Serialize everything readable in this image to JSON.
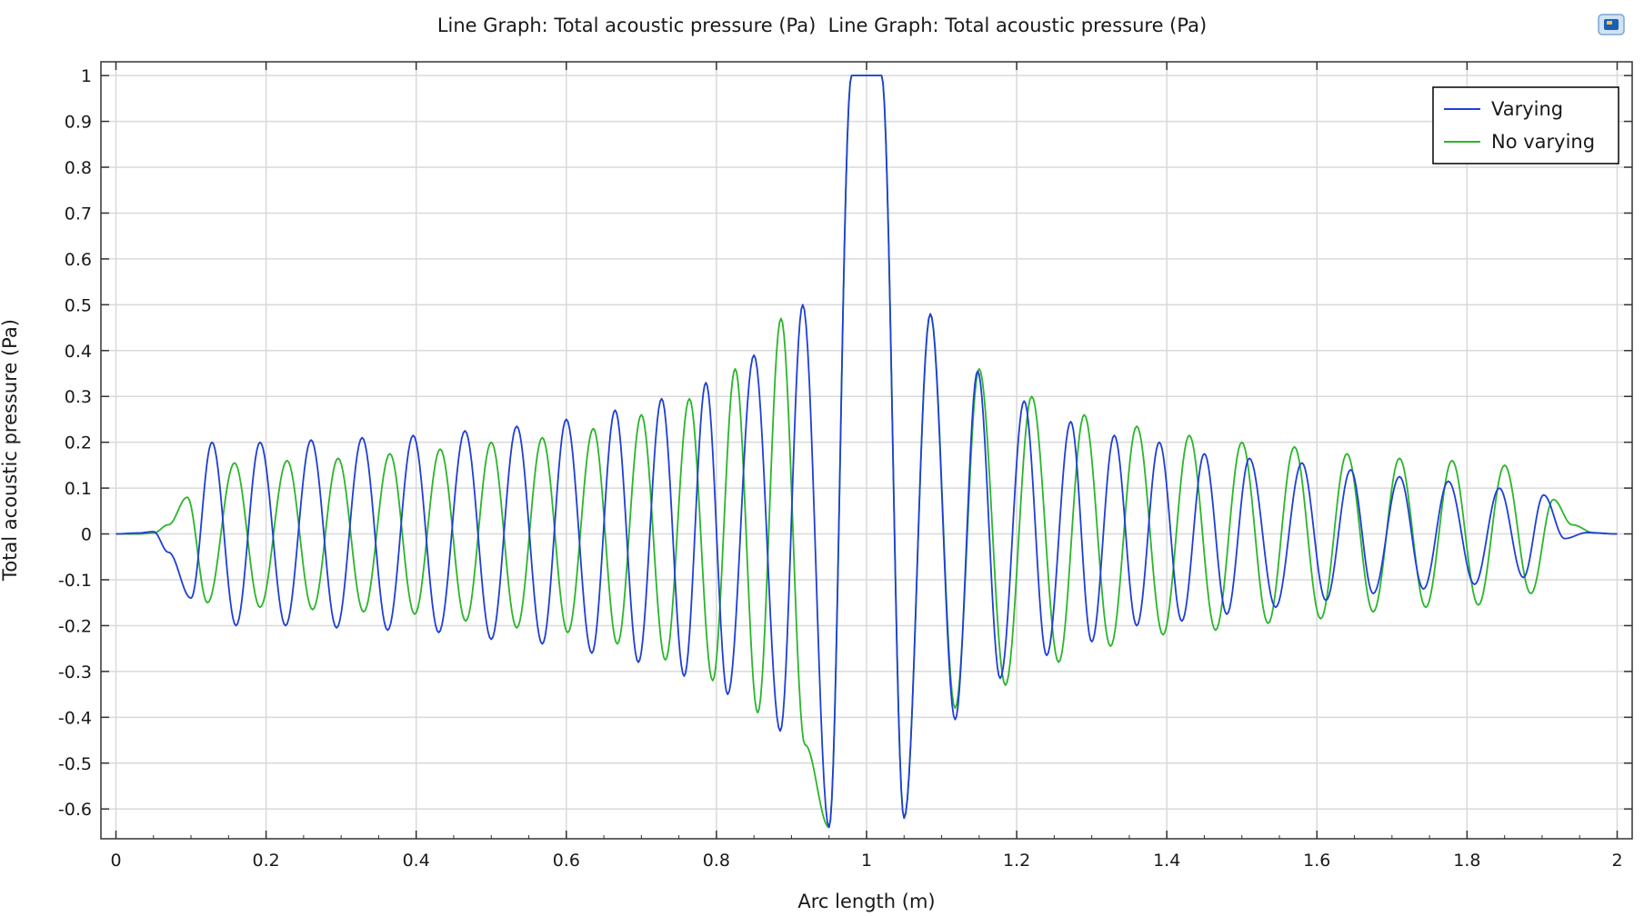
{
  "chart_data": {
    "type": "line",
    "title": "Line Graph: Total acoustic pressure (Pa)  Line Graph: Total acoustic pressure (Pa)",
    "xlabel": "Arc length (m)",
    "ylabel": "Total acoustic pressure (Pa)",
    "xlim": [
      -0.02,
      2.02
    ],
    "ylim": [
      -0.665,
      1.03
    ],
    "xticks": [
      0,
      0.2,
      0.4,
      0.6,
      0.8,
      1,
      1.2,
      1.4,
      1.6,
      1.8,
      2
    ],
    "xtick_labels": [
      "0",
      "0.2",
      "0.4",
      "0.6",
      "0.8",
      "1",
      "1.2",
      "1.4",
      "1.6",
      "1.8",
      "2"
    ],
    "yticks": [
      -0.6,
      -0.5,
      -0.4,
      -0.3,
      -0.2,
      -0.1,
      0,
      0.1,
      0.2,
      0.3,
      0.4,
      0.5,
      0.6,
      0.7,
      0.8,
      0.9,
      1
    ],
    "ytick_labels": [
      "-0.6",
      "-0.5",
      "-0.4",
      "-0.3",
      "-0.2",
      "-0.1",
      "0",
      "0.1",
      "0.2",
      "0.3",
      "0.4",
      "0.5",
      "0.6",
      "0.7",
      "0.8",
      "0.9",
      "1"
    ],
    "grid": true,
    "legend_position": "top-right",
    "series": [
      {
        "name": "Varying",
        "color": "#1f3fd6",
        "anchors": [
          [
            0,
            0
          ],
          [
            0.03,
            0.002
          ],
          [
            0.05,
            0.005
          ],
          [
            0.07,
            -0.04
          ],
          [
            0.1,
            -0.14
          ],
          [
            0.128,
            0.2
          ],
          [
            0.16,
            -0.2
          ],
          [
            0.192,
            0.2
          ],
          [
            0.226,
            -0.2
          ],
          [
            0.26,
            0.205
          ],
          [
            0.294,
            -0.205
          ],
          [
            0.328,
            0.21
          ],
          [
            0.362,
            -0.21
          ],
          [
            0.396,
            0.215
          ],
          [
            0.43,
            -0.215
          ],
          [
            0.465,
            0.225
          ],
          [
            0.5,
            -0.23
          ],
          [
            0.534,
            0.235
          ],
          [
            0.568,
            -0.24
          ],
          [
            0.6,
            0.25
          ],
          [
            0.634,
            -0.26
          ],
          [
            0.665,
            0.27
          ],
          [
            0.696,
            -0.28
          ],
          [
            0.727,
            0.295
          ],
          [
            0.757,
            -0.31
          ],
          [
            0.786,
            0.33
          ],
          [
            0.815,
            -0.35
          ],
          [
            0.85,
            0.39
          ],
          [
            0.885,
            -0.43
          ],
          [
            0.915,
            0.5
          ],
          [
            0.95,
            -0.64
          ],
          [
            0.98,
            1.0
          ],
          [
            1.02,
            1.0
          ],
          [
            1.05,
            -0.62
          ],
          [
            1.085,
            0.48
          ],
          [
            1.118,
            -0.405
          ],
          [
            1.148,
            0.355
          ],
          [
            1.178,
            -0.315
          ],
          [
            1.21,
            0.29
          ],
          [
            1.24,
            -0.265
          ],
          [
            1.272,
            0.245
          ],
          [
            1.3,
            -0.235
          ],
          [
            1.33,
            0.215
          ],
          [
            1.36,
            -0.2
          ],
          [
            1.39,
            0.2
          ],
          [
            1.42,
            -0.19
          ],
          [
            1.45,
            0.175
          ],
          [
            1.48,
            -0.175
          ],
          [
            1.51,
            0.165
          ],
          [
            1.545,
            -0.16
          ],
          [
            1.58,
            0.155
          ],
          [
            1.612,
            -0.145
          ],
          [
            1.645,
            0.14
          ],
          [
            1.675,
            -0.13
          ],
          [
            1.71,
            0.125
          ],
          [
            1.742,
            -0.12
          ],
          [
            1.775,
            0.115
          ],
          [
            1.81,
            -0.11
          ],
          [
            1.843,
            0.1
          ],
          [
            1.875,
            -0.095
          ],
          [
            1.902,
            0.085
          ],
          [
            1.93,
            -0.01
          ],
          [
            1.96,
            0.003
          ],
          [
            2.0,
            0.0
          ]
        ]
      },
      {
        "name": "No varying",
        "color": "#2bb52b",
        "anchors": [
          [
            0,
            0
          ],
          [
            0.03,
            0
          ],
          [
            0.05,
            0.002
          ],
          [
            0.07,
            0.02
          ],
          [
            0.095,
            0.08
          ],
          [
            0.122,
            -0.15
          ],
          [
            0.158,
            0.155
          ],
          [
            0.192,
            -0.16
          ],
          [
            0.228,
            0.16
          ],
          [
            0.262,
            -0.165
          ],
          [
            0.296,
            0.165
          ],
          [
            0.33,
            -0.17
          ],
          [
            0.365,
            0.175
          ],
          [
            0.398,
            -0.175
          ],
          [
            0.432,
            0.185
          ],
          [
            0.466,
            -0.19
          ],
          [
            0.5,
            0.2
          ],
          [
            0.534,
            -0.205
          ],
          [
            0.568,
            0.21
          ],
          [
            0.602,
            -0.215
          ],
          [
            0.636,
            0.23
          ],
          [
            0.668,
            -0.24
          ],
          [
            0.7,
            0.26
          ],
          [
            0.732,
            -0.275
          ],
          [
            0.764,
            0.295
          ],
          [
            0.795,
            -0.32
          ],
          [
            0.825,
            0.36
          ],
          [
            0.855,
            -0.39
          ],
          [
            0.886,
            0.47
          ],
          [
            0.918,
            -0.46
          ],
          [
            0.95,
            -0.64
          ],
          [
            0.98,
            1.0
          ],
          [
            1.02,
            1.0
          ],
          [
            1.05,
            -0.62
          ],
          [
            1.085,
            0.48
          ],
          [
            1.118,
            -0.38
          ],
          [
            1.15,
            0.36
          ],
          [
            1.185,
            -0.33
          ],
          [
            1.22,
            0.3
          ],
          [
            1.256,
            -0.28
          ],
          [
            1.29,
            0.26
          ],
          [
            1.325,
            -0.245
          ],
          [
            1.36,
            0.235
          ],
          [
            1.395,
            -0.22
          ],
          [
            1.43,
            0.215
          ],
          [
            1.465,
            -0.21
          ],
          [
            1.5,
            0.2
          ],
          [
            1.535,
            -0.195
          ],
          [
            1.57,
            0.19
          ],
          [
            1.605,
            -0.185
          ],
          [
            1.64,
            0.175
          ],
          [
            1.675,
            -0.17
          ],
          [
            1.71,
            0.165
          ],
          [
            1.745,
            -0.16
          ],
          [
            1.78,
            0.16
          ],
          [
            1.815,
            -0.155
          ],
          [
            1.85,
            0.15
          ],
          [
            1.885,
            -0.13
          ],
          [
            1.915,
            0.075
          ],
          [
            1.94,
            0.02
          ],
          [
            1.97,
            0.002
          ],
          [
            2.0,
            0.0
          ]
        ]
      }
    ]
  }
}
